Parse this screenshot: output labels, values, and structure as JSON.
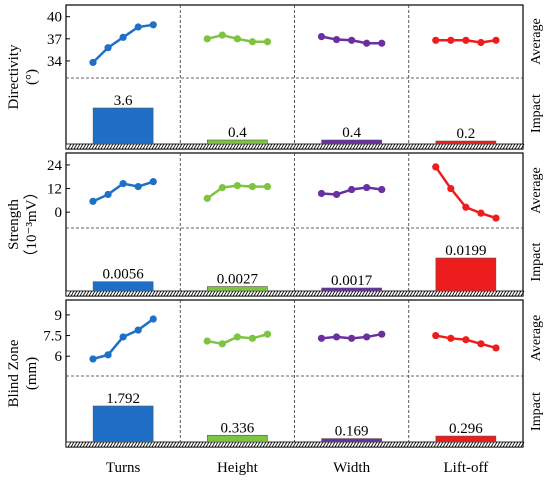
{
  "chart_data": {
    "type": "bar",
    "factors": [
      "Turns",
      "Height",
      "Width",
      "Lift-off"
    ],
    "colors": {
      "Turns": "#1f6fc7",
      "Height": "#7dc441",
      "Width": "#6a2fa0",
      "Lift-off": "#ee1d1d"
    },
    "row_labels": {
      "average": "Average",
      "impact": "Impact"
    },
    "panels": [
      {
        "ylabel": [
          "Directivity",
          "(°)"
        ],
        "yticks": [
          "40",
          "37",
          "34"
        ],
        "ylim": [
          32.5,
          40.5
        ],
        "averages": {
          "Turns": [
            33.8,
            35.8,
            37.2,
            38.6,
            38.9
          ],
          "Height": [
            37.0,
            37.5,
            37.0,
            36.6,
            36.6
          ],
          "Width": [
            37.3,
            36.9,
            36.8,
            36.4,
            36.4
          ],
          "Lift-off": [
            36.8,
            36.8,
            36.8,
            36.5,
            36.8
          ]
        },
        "impact": [
          3.6,
          0.4,
          0.4,
          0.2
        ],
        "impact_labels": [
          "3.6",
          "0.4",
          "0.4",
          "0.2"
        ]
      },
      {
        "ylabel": [
          "Strength",
          "（10⁻³mV）"
        ],
        "yticks": [
          "24",
          "12",
          "0"
        ],
        "ylim": [
          -5,
          26
        ],
        "averages": {
          "Turns": [
            5.5,
            9.0,
            14.5,
            13.0,
            15.5
          ],
          "Height": [
            7.0,
            12.5,
            13.5,
            13.0,
            13.0
          ],
          "Width": [
            9.5,
            9.0,
            11.5,
            12.5,
            11.5
          ],
          "Lift-off": [
            23.0,
            12.0,
            2.5,
            -0.5,
            -3.0
          ]
        },
        "impact": [
          0.0056,
          0.0027,
          0.0017,
          0.0199
        ],
        "impact_labels": [
          "0.0056",
          "0.0027",
          "0.0017",
          "0.0199"
        ]
      },
      {
        "ylabel": [
          "Blind Zone",
          "(mm)"
        ],
        "yticks": [
          "9",
          "7.5",
          "6"
        ],
        "ylim": [
          5.0,
          9.5
        ],
        "averages": {
          "Turns": [
            5.8,
            6.1,
            7.4,
            7.9,
            8.7
          ],
          "Height": [
            7.1,
            6.9,
            7.4,
            7.3,
            7.6
          ],
          "Width": [
            7.3,
            7.4,
            7.3,
            7.4,
            7.6
          ],
          "Lift-off": [
            7.5,
            7.3,
            7.2,
            6.9,
            6.6
          ]
        },
        "impact": [
          1.792,
          0.336,
          0.169,
          0.296
        ],
        "impact_labels": [
          "1.792",
          "0.336",
          "0.169",
          "0.296"
        ]
      }
    ]
  }
}
